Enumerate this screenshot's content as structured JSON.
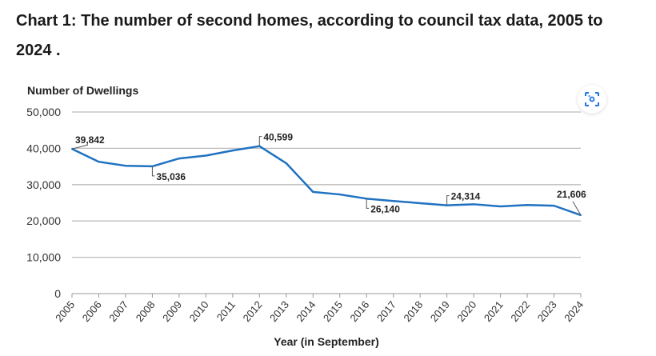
{
  "chart_data": {
    "type": "line",
    "title": "Chart 1: The number of second homes, according to council tax data, 2005 to 2024 .",
    "ylabel": "Number of Dwellings",
    "xlabel": "Year (in September)",
    "ylim": [
      0,
      50000
    ],
    "yticks": [
      "0",
      "10,000",
      "20,000",
      "30,000",
      "40,000",
      "50,000"
    ],
    "grid": true,
    "categories": [
      "2005",
      "2006",
      "2007",
      "2008",
      "2009",
      "2010",
      "2011",
      "2012",
      "2013",
      "2014",
      "2015",
      "2016",
      "2017",
      "2018",
      "2019",
      "2020",
      "2021",
      "2022",
      "2023",
      "2024"
    ],
    "series": [
      {
        "name": "Second homes",
        "color": "#1f72c1",
        "values": [
          39842,
          36300,
          35200,
          35036,
          37200,
          38000,
          39400,
          40599,
          35900,
          28000,
          27300,
          26140,
          25500,
          24900,
          24314,
          24600,
          24000,
          24400,
          24200,
          21606
        ]
      }
    ],
    "annotations": [
      {
        "index": 0,
        "label": "39,842"
      },
      {
        "index": 3,
        "label": "35,036"
      },
      {
        "index": 7,
        "label": "40,599"
      },
      {
        "index": 11,
        "label": "26,140"
      },
      {
        "index": 14,
        "label": "24,314"
      },
      {
        "index": 19,
        "label": "21,606"
      }
    ]
  }
}
